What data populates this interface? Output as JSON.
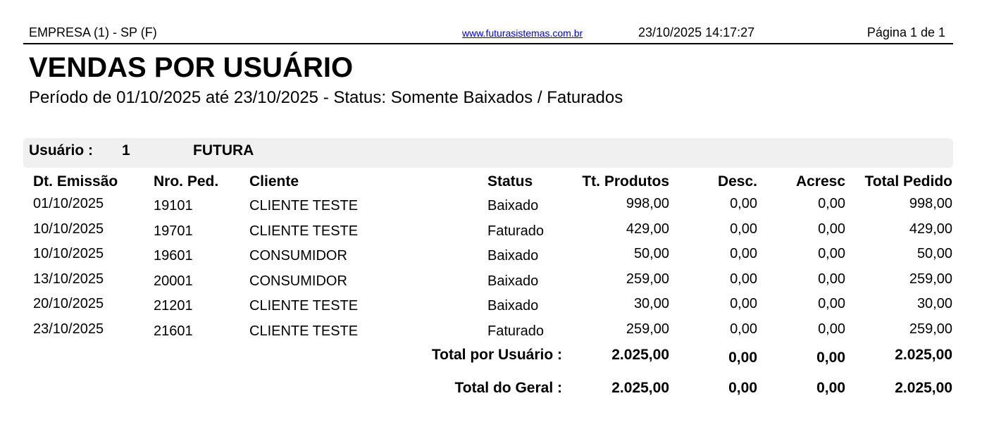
{
  "header": {
    "company": "EMPRESA (1) - SP (F)",
    "website": "www.futurasistemas.com.br",
    "datetime": "23/10/2025 14:17:27",
    "page": "Página 1 de 1"
  },
  "report": {
    "title": "VENDAS POR USUÁRIO",
    "subtitle": "Período de 01/10/2025 até 23/10/2025 - Status: Somente Baixados / Faturados"
  },
  "group": {
    "label": "Usuário :",
    "id": "1",
    "name": "FUTURA"
  },
  "columns": [
    "Dt. Emissão",
    "Nro. Ped.",
    "Cliente",
    "Status",
    "Tt. Produtos",
    "Desc.",
    "Acresc",
    "Total Pedido"
  ],
  "rows": [
    [
      "01/10/2025",
      "19101",
      "CLIENTE TESTE",
      "Baixado",
      "998,00",
      "0,00",
      "0,00",
      "998,00"
    ],
    [
      "10/10/2025",
      "19701",
      "CLIENTE TESTE",
      "Faturado",
      "429,00",
      "0,00",
      "0,00",
      "429,00"
    ],
    [
      "10/10/2025",
      "19601",
      "CONSUMIDOR",
      "Baixado",
      "50,00",
      "0,00",
      "0,00",
      "50,00"
    ],
    [
      "13/10/2025",
      "20001",
      "CONSUMIDOR",
      "Baixado",
      "259,00",
      "0,00",
      "0,00",
      "259,00"
    ],
    [
      "20/10/2025",
      "21201",
      "CLIENTE TESTE",
      "Baixado",
      "30,00",
      "0,00",
      "0,00",
      "30,00"
    ],
    [
      "23/10/2025",
      "21601",
      "CLIENTE TESTE",
      "Faturado",
      "259,00",
      "0,00",
      "0,00",
      "259,00"
    ]
  ],
  "totals": [
    {
      "label": "Total por Usuário :",
      "values": [
        "2.025,00",
        "0,00",
        "0,00",
        "2.025,00"
      ]
    },
    {
      "label": "Total do Geral :",
      "values": [
        "2.025,00",
        "0,00",
        "0,00",
        "2.025,00"
      ]
    }
  ]
}
